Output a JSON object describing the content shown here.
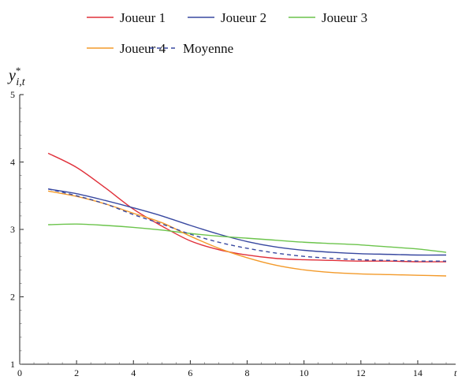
{
  "chart_data": {
    "type": "line",
    "ylabel": "y*_{i,t}",
    "ylabel_parts": {
      "base": "y",
      "sup": "*",
      "sub": "i,t"
    },
    "xlabel_partial": "t",
    "xlim": [
      0,
      15
    ],
    "ylim": [
      1,
      5
    ],
    "x_ticks": [
      0,
      2,
      4,
      6,
      8,
      10,
      12,
      14
    ],
    "y_ticks": [
      1,
      2,
      3,
      4,
      5
    ],
    "grid": false,
    "legend_position": "top",
    "x": [
      1,
      2,
      3,
      4,
      5,
      6,
      7,
      8,
      9,
      10,
      11,
      12,
      13,
      14,
      15
    ],
    "series": [
      {
        "name": "Joueur 1",
        "color": "#e0303a",
        "dash": false,
        "values": [
          4.13,
          3.92,
          3.62,
          3.3,
          3.05,
          2.83,
          2.7,
          2.62,
          2.57,
          2.55,
          2.54,
          2.53,
          2.53,
          2.52,
          2.52
        ]
      },
      {
        "name": "Joueur 2",
        "color": "#3848a0",
        "dash": false,
        "values": [
          3.6,
          3.53,
          3.43,
          3.32,
          3.2,
          3.06,
          2.93,
          2.82,
          2.74,
          2.69,
          2.66,
          2.64,
          2.63,
          2.62,
          2.62
        ]
      },
      {
        "name": "Joueur 3",
        "color": "#6cc44c",
        "dash": false,
        "values": [
          3.07,
          3.08,
          3.06,
          3.03,
          2.99,
          2.94,
          2.9,
          2.87,
          2.84,
          2.81,
          2.79,
          2.77,
          2.74,
          2.71,
          2.66
        ]
      },
      {
        "name": "Joueur 4",
        "color": "#f39a2a",
        "dash": false,
        "values": [
          3.57,
          3.49,
          3.38,
          3.24,
          3.1,
          2.9,
          2.72,
          2.58,
          2.47,
          2.4,
          2.36,
          2.34,
          2.33,
          2.32,
          2.31
        ]
      },
      {
        "name": "Moyenne",
        "color": "#3848a0",
        "dash": true,
        "values": [
          3.6,
          3.5,
          3.38,
          3.22,
          3.08,
          2.93,
          2.81,
          2.72,
          2.65,
          2.6,
          2.57,
          2.55,
          2.54,
          2.53,
          2.53
        ]
      }
    ]
  }
}
